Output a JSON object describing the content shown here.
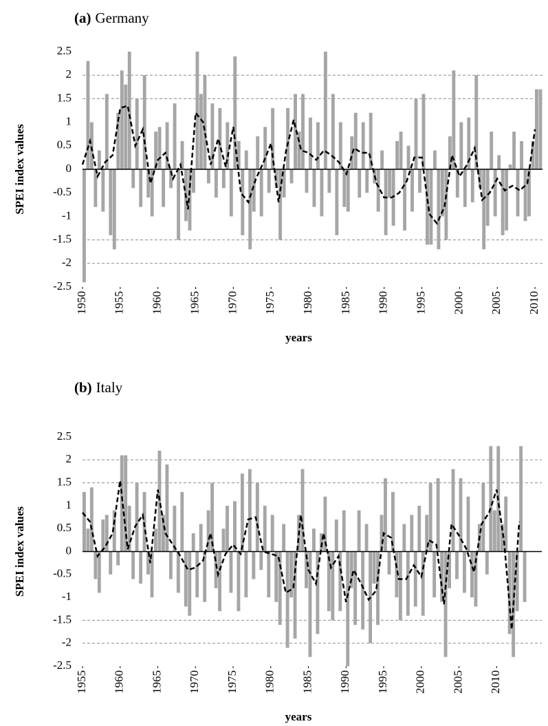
{
  "chart_data": [
    {
      "type": "bar_line",
      "title_label": "(a)",
      "title": "Germany",
      "ylabel": "SPEI index values",
      "xlabel": "years",
      "xlim": [
        1950,
        2011
      ],
      "ylim": [
        -2.5,
        2.5
      ],
      "xticks": [
        1950,
        1955,
        1960,
        1965,
        1970,
        1975,
        1980,
        1985,
        1990,
        1995,
        2000,
        2005,
        2010
      ],
      "yticks": [
        2.5,
        2,
        1.5,
        1,
        0.5,
        0,
        -0.5,
        -1,
        -1.5,
        -2,
        -2.5
      ],
      "dashed_grid": [
        2,
        1.5,
        -1.5,
        -2
      ],
      "bar_width": 0.5,
      "bars": {
        "color": "#a6a6a6",
        "x": [
          1950,
          1950.5,
          1951,
          1951.5,
          1952,
          1952.5,
          1953,
          1953.5,
          1954,
          1954.5,
          1955,
          1955.5,
          1956,
          1956.5,
          1957,
          1957.5,
          1958,
          1958.5,
          1959,
          1959.5,
          1960,
          1960.5,
          1961,
          1961.5,
          1962,
          1962.5,
          1963,
          1963.5,
          1964,
          1964.5,
          1965,
          1965.5,
          1966,
          1966.5,
          1967,
          1967.5,
          1968,
          1968.5,
          1969,
          1969.5,
          1970,
          1970.5,
          1971,
          1971.5,
          1972,
          1972.5,
          1973,
          1973.5,
          1974,
          1974.5,
          1975,
          1975.5,
          1976,
          1976.5,
          1977,
          1977.5,
          1978,
          1978.5,
          1979,
          1979.5,
          1980,
          1980.5,
          1981,
          1981.5,
          1982,
          1982.5,
          1983,
          1983.5,
          1984,
          1984.5,
          1985,
          1985.5,
          1986,
          1986.5,
          1987,
          1987.5,
          1988,
          1988.5,
          1989,
          1989.5,
          1990,
          1990.5,
          1991,
          1991.5,
          1992,
          1992.5,
          1993,
          1993.5,
          1994,
          1994.5,
          1995,
          1995.5,
          1996,
          1996.5,
          1997,
          1997.5,
          1998,
          1998.5,
          1999,
          1999.5,
          2000,
          2000.5,
          2001,
          2001.5,
          2002,
          2002.5,
          2003,
          2003.5,
          2004,
          2004.5,
          2005,
          2005.5,
          2006,
          2006.5,
          2007,
          2007.5,
          2008,
          2008.5,
          2009,
          2009.5,
          2010,
          2010.5
        ],
        "values": [
          -2.4,
          2.3,
          1.0,
          -0.8,
          0.4,
          -0.9,
          1.6,
          -1.4,
          -1.7,
          1.2,
          2.1,
          1.8,
          2.5,
          -0.4,
          1.5,
          -0.8,
          2.0,
          -0.6,
          -1.0,
          0.8,
          0.9,
          -0.8,
          1.0,
          -0.4,
          1.4,
          -1.5,
          0.6,
          -1.1,
          -1.3,
          -0.5,
          2.5,
          1.6,
          2.0,
          -0.3,
          1.4,
          -0.6,
          1.3,
          -0.4,
          1.0,
          -1.0,
          2.4,
          0.6,
          -1.4,
          0.4,
          -1.7,
          -0.9,
          0.7,
          -1.0,
          0.9,
          -0.5,
          1.3,
          -0.4,
          -1.5,
          -0.6,
          1.3,
          -0.3,
          1.6,
          0.8,
          1.6,
          -0.5,
          1.1,
          -0.8,
          1.0,
          -1.0,
          2.5,
          -0.5,
          1.6,
          -1.4,
          1.0,
          -0.8,
          -0.9,
          0.7,
          1.2,
          -0.6,
          1.0,
          -0.5,
          1.2,
          -0.3,
          -0.9,
          0.4,
          -1.4,
          -0.6,
          -1.2,
          0.6,
          0.8,
          -1.3,
          0.5,
          -0.9,
          1.5,
          -0.5,
          1.6,
          -1.6,
          -1.6,
          0.4,
          -1.7,
          -1.0,
          -1.5,
          0.7,
          2.1,
          -0.6,
          1.0,
          -0.8,
          1.1,
          -0.7,
          2.0,
          -0.4,
          -1.7,
          -1.2,
          0.8,
          -1.0,
          0.3,
          -1.4,
          -1.3,
          0.1,
          0.8,
          -1.0,
          0.6,
          -1.1,
          -1.0,
          0.6,
          1.7,
          1.7
        ]
      },
      "line": {
        "color": "#000000",
        "x": [
          1950,
          1951,
          1952,
          1953,
          1954,
          1955,
          1956,
          1957,
          1958,
          1959,
          1960,
          1961,
          1962,
          1963,
          1964,
          1965,
          1966,
          1967,
          1968,
          1969,
          1970,
          1971,
          1972,
          1973,
          1974,
          1975,
          1976,
          1977,
          1978,
          1979,
          1980,
          1981,
          1982,
          1983,
          1984,
          1985,
          1986,
          1987,
          1988,
          1989,
          1990,
          1991,
          1992,
          1993,
          1994,
          1995,
          1996,
          1997,
          1998,
          1999,
          2000,
          2001,
          2002,
          2003,
          2004,
          2005,
          2006,
          2007,
          2008,
          2009,
          2010
        ],
        "values": [
          0.1,
          0.6,
          -0.15,
          0.15,
          0.3,
          1.3,
          1.35,
          0.5,
          0.85,
          -0.3,
          0.2,
          0.35,
          -0.2,
          0.1,
          -0.85,
          1.2,
          1.0,
          0.1,
          0.65,
          0.05,
          0.9,
          -0.5,
          -0.7,
          -0.2,
          0.15,
          0.55,
          -0.7,
          0.4,
          1.05,
          0.4,
          0.35,
          0.2,
          0.4,
          0.3,
          0.15,
          -0.1,
          0.45,
          0.35,
          0.35,
          -0.3,
          -0.6,
          -0.6,
          -0.5,
          -0.25,
          0.25,
          0.25,
          -0.95,
          -1.15,
          -0.8,
          0.3,
          -0.15,
          0.1,
          0.45,
          -0.65,
          -0.5,
          -0.2,
          -0.45,
          -0.35,
          -0.45,
          -0.3,
          0.85
        ]
      }
    },
    {
      "type": "bar_line",
      "title_label": "(b)",
      "title": "Italy",
      "ylabel": "SPEI index values",
      "xlabel": "years",
      "xlim": [
        1955,
        2016
      ],
      "ylim": [
        -2.5,
        2.5
      ],
      "xticks": [
        1955,
        1960,
        1965,
        1970,
        1975,
        1980,
        1985,
        1990,
        1995,
        2000,
        2005,
        2010
      ],
      "yticks": [
        2.5,
        2,
        1.5,
        1,
        0.5,
        0,
        -0.5,
        -1,
        -1.5,
        -2,
        -2.5
      ],
      "dashed_grid": [
        2,
        1.5,
        -1.5,
        -2
      ],
      "bar_width": 0.5,
      "bars": {
        "color": "#a6a6a6",
        "x": [
          1955,
          1955.5,
          1956,
          1956.5,
          1957,
          1957.5,
          1958,
          1958.5,
          1959,
          1959.5,
          1960,
          1960.5,
          1961,
          1961.5,
          1962,
          1962.5,
          1963,
          1963.5,
          1964,
          1964.5,
          1965,
          1965.5,
          1966,
          1966.5,
          1967,
          1967.5,
          1968,
          1968.5,
          1969,
          1969.5,
          1970,
          1970.5,
          1971,
          1971.5,
          1972,
          1972.5,
          1973,
          1973.5,
          1974,
          1974.5,
          1975,
          1975.5,
          1976,
          1976.5,
          1977,
          1977.5,
          1978,
          1978.5,
          1979,
          1979.5,
          1980,
          1980.5,
          1981,
          1981.5,
          1982,
          1982.5,
          1983,
          1983.5,
          1984,
          1984.5,
          1985,
          1985.5,
          1986,
          1986.5,
          1987,
          1987.5,
          1988,
          1988.5,
          1989,
          1989.5,
          1990,
          1990.5,
          1991,
          1991.5,
          1992,
          1992.5,
          1993,
          1993.5,
          1994,
          1994.5,
          1995,
          1995.5,
          1996,
          1996.5,
          1997,
          1997.5,
          1998,
          1998.5,
          1999,
          1999.5,
          2000,
          2000.5,
          2001,
          2001.5,
          2002,
          2002.5,
          2003,
          2003.5,
          2004,
          2004.5,
          2005,
          2005.5,
          2006,
          2006.5,
          2007,
          2007.5,
          2008,
          2008.5,
          2009,
          2009.5,
          2010,
          2010.5,
          2011,
          2011.5,
          2012,
          2012.5,
          2013,
          2013.5
        ],
        "values": [
          1.3,
          0.5,
          1.4,
          -0.6,
          -0.9,
          0.7,
          0.8,
          -0.5,
          0.9,
          -0.3,
          2.1,
          2.1,
          1.0,
          -0.6,
          1.5,
          -0.7,
          1.3,
          -0.5,
          -1.0,
          0.5,
          2.2,
          0.8,
          1.9,
          -0.6,
          1.0,
          -0.9,
          1.3,
          -1.2,
          -1.4,
          0.4,
          -1.0,
          0.6,
          -1.1,
          0.9,
          1.5,
          -0.8,
          -1.3,
          0.5,
          1.0,
          -0.9,
          1.1,
          -1.3,
          1.7,
          -1.0,
          1.8,
          -0.6,
          1.5,
          -0.4,
          1.0,
          -1.0,
          0.8,
          -1.1,
          -1.6,
          0.6,
          -2.1,
          -1.0,
          -1.9,
          0.8,
          1.8,
          -0.8,
          -2.3,
          0.5,
          -1.8,
          0.4,
          1.2,
          -1.3,
          -1.5,
          0.7,
          -1.3,
          0.9,
          -2.5,
          -0.8,
          -1.6,
          0.9,
          -1.7,
          0.6,
          -2.0,
          -0.7,
          -1.6,
          0.8,
          1.6,
          -0.5,
          1.3,
          -1.0,
          -1.5,
          0.6,
          -1.4,
          0.8,
          -1.2,
          1.0,
          -1.4,
          0.8,
          1.5,
          -1.0,
          1.6,
          -1.1,
          -2.3,
          -0.8,
          1.8,
          -0.6,
          1.6,
          -0.9,
          1.2,
          -1.0,
          -1.2,
          0.6,
          1.5,
          -0.5,
          2.3,
          0.9,
          2.3,
          0.6,
          1.2,
          -1.8,
          -2.3,
          -1.3,
          2.3,
          -1.1
        ]
      },
      "line": {
        "color": "#000000",
        "x": [
          1955,
          1956,
          1957,
          1958,
          1959,
          1960,
          1961,
          1962,
          1963,
          1964,
          1965,
          1966,
          1967,
          1968,
          1969,
          1970,
          1971,
          1972,
          1973,
          1974,
          1975,
          1976,
          1977,
          1978,
          1979,
          1980,
          1981,
          1982,
          1983,
          1984,
          1985,
          1986,
          1987,
          1988,
          1989,
          1990,
          1991,
          1992,
          1993,
          1994,
          1995,
          1996,
          1997,
          1998,
          1999,
          2000,
          2001,
          2002,
          2003,
          2004,
          2005,
          2006,
          2007,
          2008,
          2009,
          2010,
          2011,
          2012,
          2013
        ],
        "values": [
          0.85,
          0.65,
          -0.1,
          0.1,
          0.4,
          1.55,
          0.05,
          0.55,
          0.8,
          -0.25,
          1.35,
          0.4,
          0.15,
          -0.1,
          -0.4,
          -0.35,
          -0.2,
          0.4,
          -0.5,
          -0.05,
          0.15,
          -0.05,
          0.7,
          0.75,
          0.0,
          -0.05,
          -0.1,
          -0.9,
          -0.8,
          0.8,
          -0.4,
          -0.7,
          0.4,
          -0.35,
          -0.1,
          -1.1,
          -0.4,
          -0.7,
          -1.05,
          -0.85,
          0.4,
          0.3,
          -0.6,
          -0.6,
          -0.3,
          -0.55,
          0.25,
          0.15,
          -1.15,
          0.6,
          0.35,
          0.05,
          -0.45,
          0.6,
          0.85,
          1.35,
          0.2,
          -1.7,
          0.65
        ]
      }
    }
  ]
}
